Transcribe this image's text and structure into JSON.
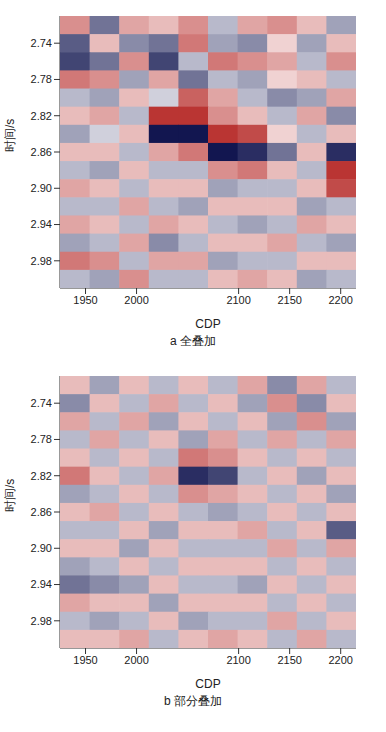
{
  "chart_data": [
    {
      "type": "heatmap",
      "title": "a 全叠加",
      "x_label": "CDP",
      "y_label": "时间/s",
      "xlim": [
        1925,
        2215
      ],
      "xticks": [
        1950,
        2000,
        2100,
        2150,
        2200
      ],
      "ylim": [
        2.71,
        3.01
      ],
      "yticks": [
        2.74,
        2.78,
        2.82,
        2.86,
        2.9,
        2.94,
        2.98
      ],
      "clim": [
        -1,
        1
      ],
      "x": [
        1939.5,
        1968.5,
        1997.5,
        2026.5,
        2055.5,
        2084.5,
        2113.5,
        2142.5,
        2171.5,
        2200.5
      ],
      "y": [
        2.72,
        2.74,
        2.76,
        2.78,
        2.8,
        2.82,
        2.84,
        2.86,
        2.88,
        2.9,
        2.92,
        2.94,
        2.96,
        2.98,
        3.0
      ],
      "cells": [
        [
          0.5,
          -0.6,
          0.4,
          0.3,
          0.5,
          -0.3,
          0.4,
          0.5,
          0.3,
          -0.4
        ],
        [
          -0.7,
          0.3,
          -0.5,
          -0.6,
          0.6,
          -0.4,
          -0.5,
          0.2,
          -0.4,
          0.3
        ],
        [
          -0.8,
          -0.6,
          0.5,
          -0.8,
          -0.3,
          0.6,
          0.5,
          0.4,
          -0.3,
          0.5
        ],
        [
          0.6,
          0.5,
          -0.4,
          0.4,
          -0.6,
          -0.3,
          -0.4,
          0.2,
          0.3,
          -0.3
        ],
        [
          -0.3,
          -0.4,
          0.3,
          -0.2,
          0.7,
          0.4,
          -0.3,
          -0.5,
          -0.4,
          0.4
        ],
        [
          0.3,
          0.4,
          -0.3,
          0.9,
          0.9,
          0.5,
          0.3,
          -0.3,
          0.4,
          -0.5
        ],
        [
          -0.4,
          -0.2,
          0.3,
          -1.0,
          -1.0,
          0.9,
          0.8,
          0.2,
          -0.3,
          0.3
        ],
        [
          0.3,
          0.3,
          -0.3,
          0.4,
          0.6,
          -1.0,
          -0.9,
          -0.6,
          0.3,
          -0.9
        ],
        [
          -0.3,
          -0.4,
          0.3,
          -0.3,
          -0.3,
          0.5,
          0.6,
          0.3,
          -0.3,
          0.9
        ],
        [
          0.4,
          0.3,
          -0.3,
          0.3,
          0.3,
          -0.4,
          -0.3,
          -0.3,
          0.3,
          0.8
        ],
        [
          -0.3,
          -0.3,
          0.4,
          -0.3,
          -0.4,
          0.3,
          0.3,
          0.3,
          -0.4,
          -0.3
        ],
        [
          0.4,
          0.3,
          -0.3,
          0.4,
          0.3,
          -0.3,
          -0.4,
          -0.3,
          0.4,
          0.3
        ],
        [
          -0.4,
          -0.3,
          0.4,
          -0.5,
          -0.3,
          0.3,
          0.3,
          0.4,
          -0.3,
          -0.4
        ],
        [
          0.6,
          0.5,
          -0.3,
          0.4,
          0.4,
          -0.4,
          -0.3,
          -0.3,
          0.3,
          0.3
        ],
        [
          -0.3,
          -0.4,
          0.5,
          -0.3,
          -0.3,
          0.3,
          0.4,
          0.3,
          -0.4,
          -0.3
        ]
      ]
    },
    {
      "type": "heatmap",
      "title": "b 部分叠加",
      "x_label": "CDP",
      "y_label": "时间/s",
      "xlim": [
        1925,
        2215
      ],
      "xticks": [
        1950,
        2000,
        2100,
        2150,
        2200
      ],
      "ylim": [
        2.71,
        3.01
      ],
      "yticks": [
        2.74,
        2.78,
        2.82,
        2.86,
        2.9,
        2.94,
        2.98
      ],
      "clim": [
        -1,
        1
      ],
      "x": [
        1939.5,
        1968.5,
        1997.5,
        2026.5,
        2055.5,
        2084.5,
        2113.5,
        2142.5,
        2171.5,
        2200.5
      ],
      "y": [
        2.72,
        2.74,
        2.76,
        2.78,
        2.8,
        2.82,
        2.84,
        2.86,
        2.88,
        2.9,
        2.92,
        2.94,
        2.96,
        2.98,
        3.0
      ],
      "cells": [
        [
          0.3,
          -0.4,
          0.3,
          -0.3,
          0.3,
          -0.3,
          0.4,
          -0.5,
          0.4,
          -0.3
        ],
        [
          -0.5,
          0.3,
          -0.3,
          0.4,
          -0.3,
          0.3,
          -0.4,
          0.5,
          -0.5,
          0.3
        ],
        [
          0.4,
          -0.3,
          0.4,
          -0.4,
          0.3,
          -0.3,
          0.3,
          -0.4,
          0.5,
          -0.4
        ],
        [
          -0.3,
          0.4,
          -0.3,
          0.3,
          -0.4,
          0.4,
          -0.3,
          0.4,
          -0.3,
          0.4
        ],
        [
          0.3,
          -0.3,
          0.3,
          -0.3,
          0.6,
          0.5,
          0.3,
          -0.3,
          0.3,
          -0.3
        ],
        [
          0.6,
          0.3,
          -0.3,
          0.4,
          -0.9,
          -0.8,
          -0.3,
          0.3,
          -0.4,
          0.3
        ],
        [
          -0.4,
          -0.3,
          0.3,
          -0.3,
          0.5,
          0.4,
          0.3,
          -0.3,
          0.3,
          -0.4
        ],
        [
          0.3,
          0.4,
          -0.3,
          0.3,
          -0.3,
          -0.4,
          -0.3,
          0.3,
          -0.3,
          0.3
        ],
        [
          -0.3,
          -0.3,
          0.3,
          -0.4,
          0.3,
          0.3,
          0.4,
          -0.3,
          0.3,
          -0.7
        ],
        [
          0.3,
          0.3,
          -0.4,
          0.3,
          -0.3,
          -0.3,
          -0.3,
          0.4,
          -0.3,
          0.4
        ],
        [
          -0.4,
          -0.3,
          0.3,
          -0.3,
          0.3,
          0.3,
          0.3,
          -0.3,
          0.3,
          -0.3
        ],
        [
          -0.6,
          -0.5,
          -0.4,
          0.3,
          -0.3,
          -0.3,
          -0.4,
          0.3,
          -0.3,
          0.3
        ],
        [
          0.4,
          0.3,
          0.3,
          -0.4,
          0.3,
          0.3,
          0.3,
          -0.3,
          0.3,
          -0.3
        ],
        [
          -0.3,
          -0.4,
          -0.3,
          0.3,
          -0.4,
          -0.3,
          -0.3,
          0.4,
          -0.3,
          0.3
        ],
        [
          0.3,
          0.3,
          0.4,
          -0.3,
          0.3,
          0.4,
          0.3,
          -0.3,
          0.4,
          -0.3
        ]
      ]
    }
  ]
}
